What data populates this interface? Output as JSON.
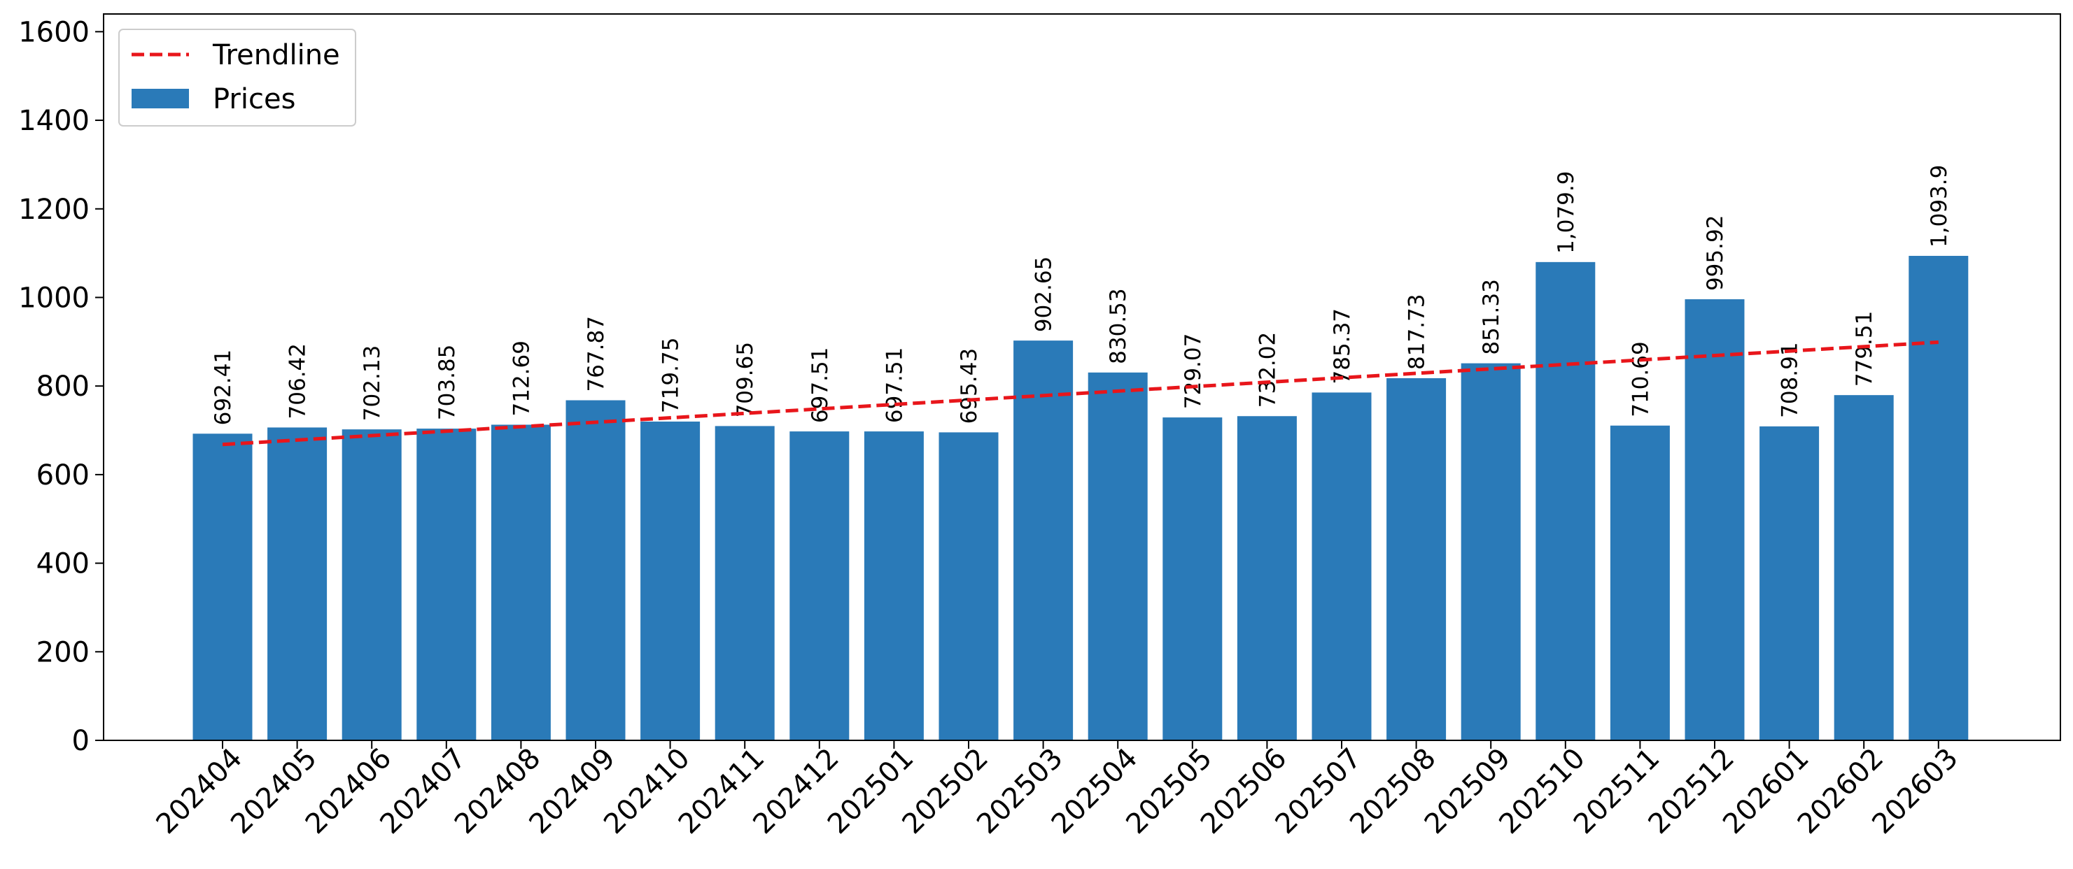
{
  "chart_data": {
    "type": "bar",
    "categories": [
      "202404",
      "202405",
      "202406",
      "202407",
      "202408",
      "202409",
      "202410",
      "202411",
      "202412",
      "202501",
      "202502",
      "202503",
      "202504",
      "202505",
      "202506",
      "202507",
      "202508",
      "202509",
      "202510",
      "202511",
      "202512",
      "202601",
      "202602",
      "202603"
    ],
    "series": [
      {
        "name": "Prices",
        "type": "bar",
        "color": "#2a7ab8",
        "values": [
          692.41,
          706.42,
          702.13,
          703.85,
          712.69,
          767.87,
          719.75,
          709.65,
          697.51,
          697.51,
          695.43,
          902.65,
          830.53,
          729.07,
          732.02,
          785.37,
          817.73,
          851.33,
          1079.9,
          710.69,
          995.92,
          708.91,
          779.51,
          1093.9
        ],
        "data_labels": [
          "692.41",
          "706.42",
          "702.13",
          "703.85",
          "712.69",
          "767.87",
          "719.75",
          "709.65",
          "697.51",
          "697.51",
          "695.43",
          "902.65",
          "830.53",
          "729.07",
          "732.02",
          "785.37",
          "817.73",
          "851.33",
          "1,079.9",
          "710.69",
          "995.92",
          "708.91",
          "779.51",
          "1,093.9"
        ]
      },
      {
        "name": "Trendline",
        "type": "line",
        "style": "dashed",
        "color": "#e8161b",
        "start": 668,
        "end": 899
      }
    ],
    "title": "",
    "xlabel": "",
    "ylabel": "",
    "ylim": [
      0,
      1640
    ],
    "yticks": [
      0,
      200,
      400,
      600,
      800,
      1000,
      1200,
      1400,
      1600
    ],
    "xtick_rotation": 45,
    "grid": false,
    "legend": {
      "position": "top-left",
      "entries": [
        "Trendline",
        "Prices"
      ]
    }
  }
}
